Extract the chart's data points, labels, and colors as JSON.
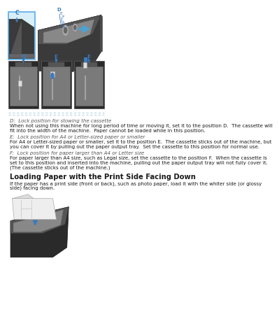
{
  "bg_color": "#ffffff",
  "text_color": "#1a1a1a",
  "gray_text_color": "#555555",
  "blue_color": "#3a7abf",
  "light_blue": "#b8d8e8",
  "dashed_blue": "#a0c8dc",
  "sections": [
    {
      "heading": "D:  Lock position for stowing the cassette",
      "body": [
        "When not using this machine for long period of time or moving it, set it to the position D.  The cassette will",
        "fit into the width of the machine.  Paper cannot be loaded while in this position."
      ]
    },
    {
      "heading": "E:  Lock position for A4 or Letter-sized paper or smaller",
      "body": [
        "For A4 or Letter-sized paper or smaller, set it to the position E.  The cassette sticks out of the machine, but",
        "you can cover it by pulling out the paper output tray.  Set the cassette to this position for normal use."
      ]
    },
    {
      "heading": "F:  Lock position for paper larger than A4 or Letter size",
      "body": [
        "For paper larger than A4 size, such as Legal size, set the cassette to the position F.  When the cassette is",
        "set to this position and inserted into the machine, pulling out the paper output tray will not fully cover it.",
        "(The cassette sticks out of the machine.)"
      ]
    }
  ],
  "section2_heading": "Loading Paper with the Print Side Facing Down",
  "section2_body": [
    "If the paper has a print side (front or back), such as photo paper, load it with the whiter side (or glossy",
    "side) facing down."
  ],
  "font_size_body": 5.0,
  "font_size_heading": 5.0,
  "font_size_section2_heading": 7.2
}
